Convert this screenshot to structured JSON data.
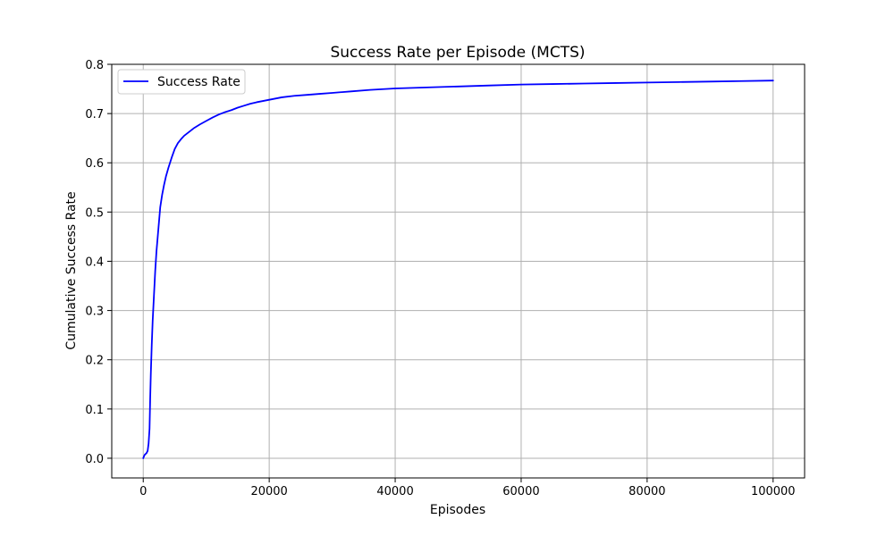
{
  "chart_data": {
    "type": "line",
    "title": "Success Rate per Episode (MCTS)",
    "xlabel": "Episodes",
    "ylabel": "Cumulative Success Rate",
    "xlim": [
      -5000,
      105000
    ],
    "ylim": [
      -0.04,
      0.8
    ],
    "xticks": [
      0,
      20000,
      40000,
      60000,
      80000,
      100000
    ],
    "yticks": [
      0.0,
      0.1,
      0.2,
      0.3,
      0.4,
      0.5,
      0.6,
      0.7,
      0.8
    ],
    "xtick_labels": [
      "0",
      "20000",
      "40000",
      "60000",
      "80000",
      "100000"
    ],
    "ytick_labels": [
      "0.0",
      "0.1",
      "0.2",
      "0.3",
      "0.4",
      "0.5",
      "0.6",
      "0.7",
      "0.8"
    ],
    "grid": true,
    "legend_position": "top-left",
    "series": [
      {
        "name": "Success Rate",
        "color": "#0000ff",
        "x": [
          1,
          150,
          300,
          500,
          700,
          850,
          1000,
          1100,
          1200,
          1350,
          1500,
          1700,
          1900,
          2100,
          2300,
          2500,
          2700,
          3000,
          3300,
          3600,
          4000,
          4500,
          5000,
          5500,
          6000,
          6500,
          7000,
          8000,
          9000,
          10000,
          11000,
          12000,
          13000,
          14000,
          15000,
          16000,
          17000,
          18000,
          20000,
          22000,
          24000,
          26000,
          28000,
          30000,
          33000,
          36000,
          40000,
          45000,
          50000,
          55000,
          60000,
          65000,
          70000,
          75000,
          80000,
          85000,
          90000,
          95000,
          100000
        ],
        "values": [
          0.0,
          0.005,
          0.008,
          0.01,
          0.015,
          0.03,
          0.06,
          0.12,
          0.17,
          0.23,
          0.28,
          0.33,
          0.38,
          0.42,
          0.45,
          0.48,
          0.51,
          0.535,
          0.555,
          0.572,
          0.59,
          0.61,
          0.628,
          0.64,
          0.648,
          0.655,
          0.66,
          0.67,
          0.678,
          0.685,
          0.692,
          0.698,
          0.703,
          0.707,
          0.712,
          0.716,
          0.72,
          0.723,
          0.728,
          0.733,
          0.736,
          0.738,
          0.74,
          0.742,
          0.745,
          0.748,
          0.751,
          0.753,
          0.755,
          0.757,
          0.759,
          0.76,
          0.761,
          0.762,
          0.763,
          0.764,
          0.765,
          0.766,
          0.767
        ]
      }
    ]
  }
}
